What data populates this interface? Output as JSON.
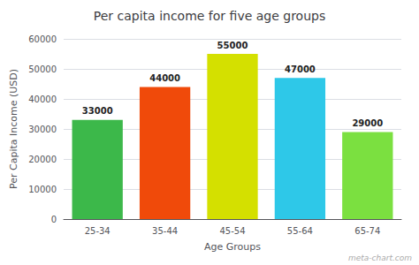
{
  "chart_data": {
    "type": "bar",
    "title": "Per capita income for five age groups",
    "categories": [
      "25-34",
      "35-44",
      "45-54",
      "55-64",
      "65-74"
    ],
    "values": [
      33000,
      44000,
      55000,
      47000,
      29000
    ],
    "colors": [
      "#3cb84a",
      "#f04a0a",
      "#d4e000",
      "#2ec8e8",
      "#7be040"
    ],
    "xlabel": "Age Groups",
    "ylabel": "Per Capita Income (USD)",
    "ylim": [
      0,
      60000
    ],
    "yticks": [
      0,
      10000,
      20000,
      30000,
      40000,
      50000,
      60000
    ],
    "grid": true,
    "data_labels": true,
    "annotations": [
      "meta-chart.com"
    ]
  }
}
